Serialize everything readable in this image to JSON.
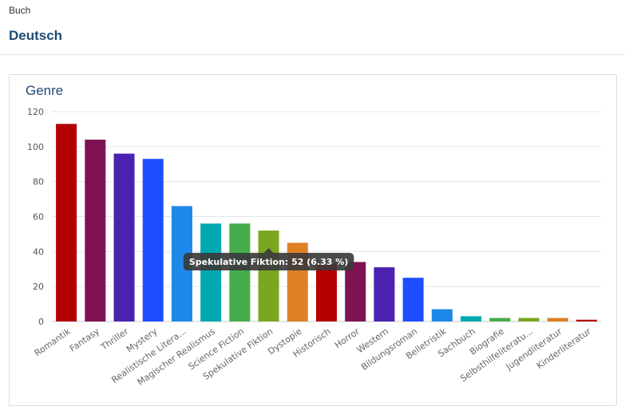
{
  "header": {
    "breadcrumb": "Buch",
    "title": "Deutsch"
  },
  "chart_data": {
    "type": "bar",
    "title": "Genre",
    "xlabel": "",
    "ylabel": "",
    "ylim": [
      0,
      120
    ],
    "yticks": [
      0,
      20,
      40,
      60,
      80,
      100,
      120
    ],
    "grid": true,
    "categories": [
      "Romantik",
      "Fantasy",
      "Thriller",
      "Mystery",
      "Realistische Litera...",
      "Magischer Realismus",
      "Science Fiction",
      "Spekulative Fiktion",
      "Dystopie",
      "Historisch",
      "Horror",
      "Western",
      "Bildungsroman",
      "Belletristik",
      "Sachbuch",
      "Biografie",
      "Selbsthilfeliteratu...",
      "Jugendliteratur",
      "Kinderliteratur"
    ],
    "values": [
      113,
      104,
      96,
      93,
      66,
      56,
      56,
      52,
      45,
      33,
      34,
      31,
      25,
      7,
      3,
      2,
      2,
      2,
      1
    ],
    "colors": [
      "#b30000",
      "#7e1252",
      "#4b22b0",
      "#1e4eff",
      "#1e88e8",
      "#00a8b0",
      "#45ad4a",
      "#7aa620",
      "#de8026",
      "#b30000",
      "#7e1252",
      "#4b22b0",
      "#1e4eff",
      "#1e88e8",
      "#00a8b0",
      "#45ad4a",
      "#7aa620",
      "#de8026",
      "#b30000"
    ],
    "tooltip": {
      "category_index": 7,
      "text": "Spekulative Fiktion: 52 (6.33 %)"
    }
  }
}
